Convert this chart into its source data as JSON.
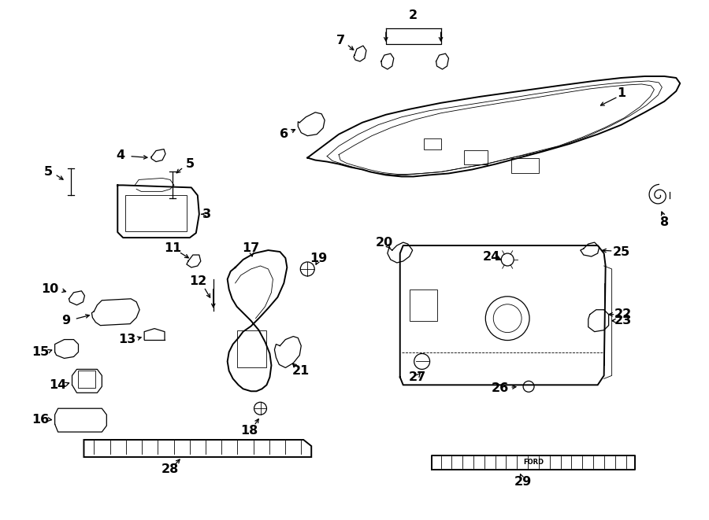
{
  "bg_color": "#ffffff",
  "line_color": "#000000",
  "fig_width": 9.0,
  "fig_height": 6.61,
  "dpi": 100,
  "lw_main": 1.4,
  "lw_minor": 0.9,
  "lw_thin": 0.6
}
